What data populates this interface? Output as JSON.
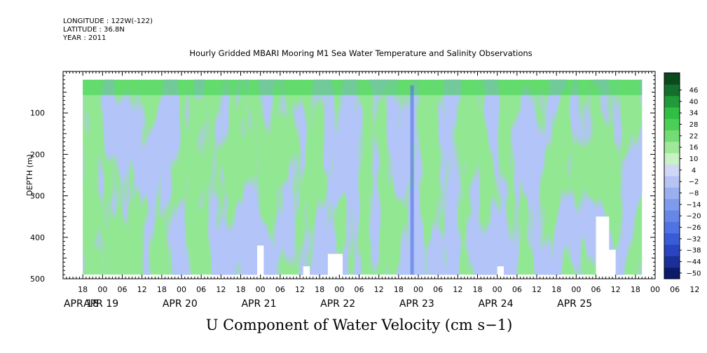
{
  "header": {
    "longitude": "LONGITUDE : 122W(-122)",
    "latitude": "LATITUDE : 36.8N",
    "year": "YEAR : 2011"
  },
  "chart_data": {
    "type": "heatmap",
    "title": "Hourly Gridded MBARI Mooring M1 Sea Water Temperature and Salinity Observations",
    "main_title": "U Component of Water Velocity (cm s−1)",
    "ylabel": "DEPTH (m)",
    "x_start_hour": -6,
    "x_end_hour": 174,
    "ylim": [
      500,
      0
    ],
    "y_ticks": [
      100,
      200,
      300,
      400,
      500
    ],
    "x_hour_ticks": [
      "18",
      "00",
      "06",
      "12",
      "18",
      "00",
      "06",
      "12",
      "18",
      "00",
      "06",
      "12",
      "18",
      "00",
      "06",
      "12",
      "18",
      "00",
      "06",
      "12",
      "18",
      "00",
      "06",
      "12",
      "18",
      "00",
      "06",
      "12",
      "18",
      "00",
      "06",
      "12"
    ],
    "x_date_labels": [
      "APR 18",
      "APR 19",
      "APR 20",
      "APR 21",
      "APR 22",
      "APR 23",
      "APR 24",
      "APR 25"
    ],
    "x_date_hours": [
      -6,
      0,
      24,
      48,
      72,
      96,
      120,
      144
    ],
    "data_start_hour": 0,
    "data_end_hour": 170,
    "data_depth_range": [
      20,
      490
    ],
    "colorbar": {
      "levels": [
        -50,
        -44,
        -38,
        -32,
        -26,
        -20,
        -14,
        -8,
        -2,
        4,
        10,
        16,
        22,
        28,
        34,
        40,
        46
      ],
      "colors": [
        "#0b1a6b",
        "#1b2f9a",
        "#2a44c2",
        "#3a5bd8",
        "#4f73e2",
        "#6687e8",
        "#7f9cec",
        "#9aaff0",
        "#b6c3f4",
        "#cfd7f7",
        "#c8f2c4",
        "#9fe89b",
        "#74dc74",
        "#4ccf55",
        "#2fbf45",
        "#1f9b3a",
        "#146f2c",
        "#0b4a1d"
      ]
    }
  }
}
